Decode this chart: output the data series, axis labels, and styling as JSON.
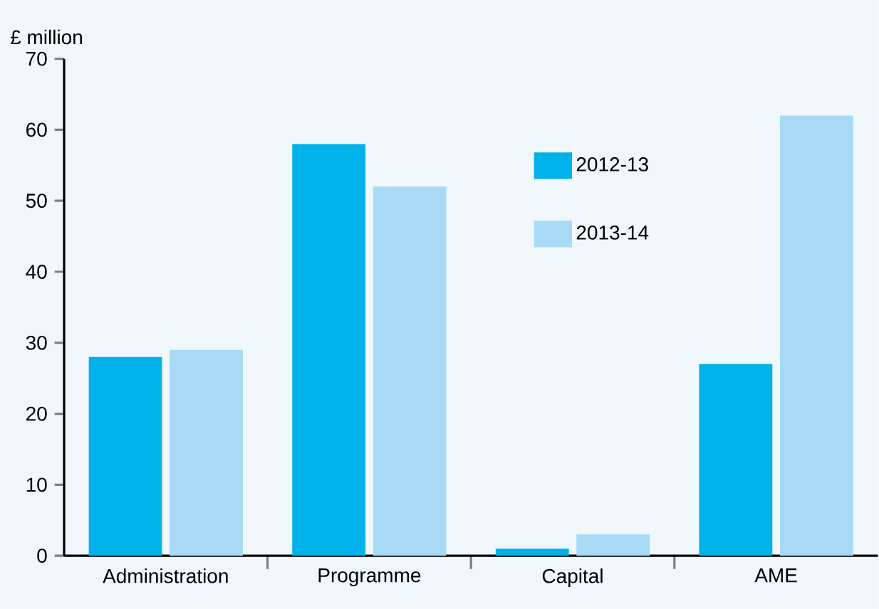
{
  "chart_data": {
    "type": "bar",
    "ylabel": "£ million",
    "categories": [
      "Administration",
      "Programme",
      "Capital",
      "AME"
    ],
    "series": [
      {
        "name": "2012-13",
        "color": "#00b2e9",
        "values": [
          28,
          58,
          1,
          27
        ]
      },
      {
        "name": "2013-14",
        "color": "#a8daf5",
        "values": [
          29,
          52,
          3,
          62
        ]
      }
    ],
    "ylim": [
      0,
      70
    ],
    "yticks": [
      0,
      10,
      20,
      30,
      40,
      50,
      60,
      70
    ],
    "legend": "top"
  }
}
